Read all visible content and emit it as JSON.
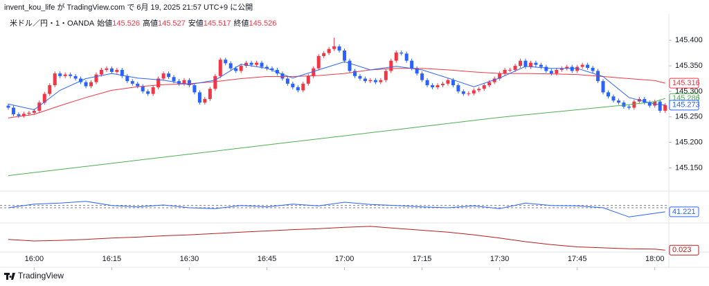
{
  "header": {
    "publisher": "invent_kou_life が TradingView.com で 6月 19, 2025 21:57 UTC+9 に公開"
  },
  "legend": {
    "symbol": "米ドル／円・1・OANDA",
    "open_label": "始値",
    "open": 145.526,
    "high_label": "高値",
    "high": 145.527,
    "low_label": "安値",
    "low": 145.517,
    "close_label": "終値",
    "close": 145.526
  },
  "footer": {
    "brand": "TradingView"
  },
  "chart_data": {
    "type": "candlestick",
    "up_color": "#f23645",
    "down_color": "#2962ff",
    "x": [
      "15:55",
      "15:56",
      "15:57",
      "15:58",
      "15:59",
      "16:00",
      "16:01",
      "16:02",
      "16:03",
      "16:04",
      "16:05",
      "16:06",
      "16:07",
      "16:08",
      "16:09",
      "16:10",
      "16:11",
      "16:12",
      "16:13",
      "16:14",
      "16:15",
      "16:16",
      "16:17",
      "16:18",
      "16:19",
      "16:20",
      "16:21",
      "16:22",
      "16:23",
      "16:24",
      "16:25",
      "16:26",
      "16:27",
      "16:28",
      "16:29",
      "16:30",
      "16:31",
      "16:32",
      "16:33",
      "16:34",
      "16:35",
      "16:36",
      "16:37",
      "16:38",
      "16:39",
      "16:40",
      "16:41",
      "16:42",
      "16:43",
      "16:44",
      "16:45",
      "16:46",
      "16:47",
      "16:48",
      "16:49",
      "16:50",
      "16:51",
      "16:52",
      "16:53",
      "16:54",
      "16:55",
      "16:56",
      "16:57",
      "16:58",
      "16:59",
      "17:00",
      "17:01",
      "17:02",
      "17:03",
      "17:04",
      "17:05",
      "17:06",
      "17:07",
      "17:08",
      "17:09",
      "17:10",
      "17:11",
      "17:12",
      "17:13",
      "17:14",
      "17:15",
      "17:16",
      "17:17",
      "17:18",
      "17:19",
      "17:20",
      "17:21",
      "17:22",
      "17:23",
      "17:24",
      "17:25",
      "17:26",
      "17:27",
      "17:28",
      "17:29",
      "17:30",
      "17:31",
      "17:32",
      "17:33",
      "17:34",
      "17:35",
      "17:36",
      "17:37",
      "17:38",
      "17:39",
      "17:40",
      "17:41",
      "17:42",
      "17:43",
      "17:44",
      "17:45",
      "17:46",
      "17:47",
      "17:48",
      "17:49",
      "17:50",
      "17:51",
      "17:52",
      "17:53",
      "17:54",
      "17:55",
      "17:56",
      "17:57",
      "17:58",
      "17:59",
      "18:00",
      "18:01",
      "18:02"
    ],
    "open": [
      145.272,
      145.268,
      145.255,
      145.252,
      145.256,
      145.258,
      145.262,
      145.278,
      145.295,
      145.312,
      145.335,
      145.33,
      145.333,
      145.33,
      145.325,
      145.318,
      145.31,
      145.318,
      145.333,
      145.342,
      145.345,
      145.338,
      145.342,
      145.33,
      145.32,
      145.315,
      145.31,
      145.3,
      145.295,
      145.308,
      145.325,
      145.335,
      145.328,
      145.32,
      145.315,
      145.322,
      145.312,
      145.298,
      145.278,
      145.285,
      145.305,
      145.33,
      145.362,
      145.355,
      145.345,
      145.34,
      145.35,
      145.356,
      145.352,
      145.356,
      145.348,
      145.345,
      145.342,
      145.335,
      145.325,
      145.315,
      145.308,
      145.302,
      145.315,
      145.33,
      145.345,
      145.369,
      145.375,
      145.383,
      145.388,
      145.38,
      145.36,
      145.34,
      145.33,
      145.325,
      145.32,
      145.322,
      145.318,
      145.322,
      145.34,
      145.36,
      145.376,
      145.374,
      145.36,
      145.345,
      145.335,
      145.322,
      145.312,
      145.308,
      145.312,
      145.315,
      145.322,
      145.312,
      145.3,
      145.295,
      145.296,
      145.302,
      145.305,
      145.312,
      145.318,
      145.325,
      145.335,
      145.342,
      145.342,
      145.35,
      145.36,
      145.348,
      145.356,
      145.352,
      145.348,
      145.34,
      145.335,
      145.342,
      145.345,
      145.348,
      145.34,
      145.348,
      145.352,
      145.346,
      145.34,
      145.32,
      145.298,
      145.29,
      145.282,
      145.278,
      145.27,
      145.268,
      145.28,
      145.285,
      145.278,
      145.272,
      145.28,
      145.262
    ],
    "high": [
      145.276,
      145.272,
      145.259,
      145.26,
      145.262,
      145.266,
      145.282,
      145.299,
      145.316,
      145.339,
      145.339,
      145.337,
      145.337,
      145.334,
      145.329,
      145.322,
      145.322,
      145.337,
      145.346,
      145.349,
      145.349,
      145.346,
      145.346,
      145.334,
      145.324,
      145.319,
      145.314,
      145.304,
      145.312,
      145.329,
      145.339,
      145.339,
      145.332,
      145.324,
      145.326,
      145.326,
      145.316,
      145.302,
      145.289,
      145.309,
      145.334,
      145.366,
      145.366,
      145.359,
      145.349,
      145.354,
      145.36,
      145.36,
      145.36,
      145.36,
      145.352,
      145.349,
      145.346,
      145.339,
      145.329,
      145.319,
      145.312,
      145.319,
      145.334,
      145.349,
      145.373,
      145.379,
      145.387,
      145.405,
      145.392,
      145.384,
      145.364,
      145.344,
      145.334,
      145.329,
      145.326,
      145.326,
      145.326,
      145.344,
      145.364,
      145.38,
      145.38,
      145.378,
      145.364,
      145.349,
      145.339,
      145.326,
      145.316,
      145.316,
      145.319,
      145.326,
      145.326,
      145.316,
      145.304,
      145.3,
      145.306,
      145.309,
      145.316,
      145.322,
      145.329,
      145.339,
      145.346,
      145.346,
      145.354,
      145.364,
      145.364,
      145.36,
      145.36,
      145.356,
      145.352,
      145.344,
      145.346,
      145.349,
      145.352,
      145.352,
      145.352,
      145.356,
      145.356,
      145.35,
      145.344,
      145.324,
      145.302,
      145.294,
      145.286,
      145.282,
      145.274,
      145.284,
      145.289,
      145.289,
      145.282,
      145.284,
      145.284,
      145.277
    ],
    "low": [
      145.264,
      145.251,
      145.248,
      145.248,
      145.252,
      145.254,
      145.258,
      145.274,
      145.291,
      145.308,
      145.326,
      145.326,
      145.326,
      145.321,
      145.314,
      145.306,
      145.306,
      145.314,
      145.329,
      145.338,
      145.334,
      145.334,
      145.326,
      145.316,
      145.311,
      145.306,
      145.296,
      145.291,
      145.291,
      145.304,
      145.321,
      145.324,
      145.316,
      145.311,
      145.311,
      145.308,
      145.294,
      145.274,
      145.274,
      145.281,
      145.301,
      145.326,
      145.351,
      145.341,
      145.336,
      145.336,
      145.346,
      145.348,
      145.348,
      145.344,
      145.341,
      145.338,
      145.331,
      145.321,
      145.311,
      145.304,
      145.298,
      145.298,
      145.311,
      145.326,
      145.341,
      145.365,
      145.371,
      145.379,
      145.376,
      145.356,
      145.336,
      145.326,
      145.321,
      145.316,
      145.316,
      145.314,
      145.314,
      145.318,
      145.336,
      145.356,
      145.37,
      145.356,
      145.341,
      145.331,
      145.318,
      145.308,
      145.304,
      145.304,
      145.308,
      145.311,
      145.308,
      145.296,
      145.291,
      145.291,
      145.292,
      145.298,
      145.301,
      145.308,
      145.314,
      145.321,
      145.331,
      145.338,
      145.338,
      145.346,
      145.344,
      145.344,
      145.348,
      145.344,
      145.336,
      145.331,
      145.331,
      145.338,
      145.341,
      145.336,
      145.336,
      145.344,
      145.342,
      145.336,
      145.316,
      145.294,
      145.286,
      145.278,
      145.274,
      145.266,
      145.264,
      145.264,
      145.276,
      145.274,
      145.268,
      145.268,
      145.258,
      145.258
    ],
    "close": [
      145.268,
      145.255,
      145.252,
      145.256,
      145.258,
      145.262,
      145.278,
      145.295,
      145.312,
      145.335,
      145.33,
      145.333,
      145.33,
      145.325,
      145.318,
      145.31,
      145.318,
      145.333,
      145.342,
      145.345,
      145.338,
      145.342,
      145.33,
      145.32,
      145.315,
      145.31,
      145.3,
      145.295,
      145.308,
      145.325,
      145.335,
      145.328,
      145.32,
      145.315,
      145.322,
      145.312,
      145.298,
      145.278,
      145.285,
      145.305,
      145.33,
      145.362,
      145.355,
      145.345,
      145.34,
      145.35,
      145.356,
      145.352,
      145.356,
      145.348,
      145.345,
      145.342,
      145.335,
      145.325,
      145.315,
      145.308,
      145.302,
      145.315,
      145.33,
      145.345,
      145.369,
      145.375,
      145.383,
      145.388,
      145.38,
      145.36,
      145.34,
      145.33,
      145.325,
      145.32,
      145.322,
      145.318,
      145.322,
      145.34,
      145.36,
      145.376,
      145.374,
      145.36,
      145.345,
      145.335,
      145.322,
      145.312,
      145.308,
      145.312,
      145.315,
      145.322,
      145.312,
      145.3,
      145.295,
      145.296,
      145.302,
      145.305,
      145.312,
      145.318,
      145.325,
      145.335,
      145.342,
      145.342,
      145.35,
      145.36,
      145.348,
      145.356,
      145.352,
      145.348,
      145.34,
      145.335,
      145.342,
      145.345,
      145.348,
      145.34,
      145.348,
      145.352,
      145.346,
      145.34,
      145.32,
      145.298,
      145.29,
      145.282,
      145.278,
      145.27,
      145.268,
      145.28,
      145.285,
      145.278,
      145.272,
      145.28,
      145.262,
      145.273
    ],
    "ylim": [
      145.11,
      145.445
    ],
    "yticks": [
      {
        "value": 145.15,
        "label": "145.150"
      },
      {
        "value": 145.2,
        "label": "145.200"
      },
      {
        "value": 145.25,
        "label": "145.250"
      },
      {
        "value": 145.3,
        "label": "145.300"
      },
      {
        "value": 145.35,
        "label": "145.350"
      },
      {
        "value": 145.4,
        "label": "145.400"
      }
    ],
    "xticks": [
      "16:00",
      "16:15",
      "16:30",
      "16:45",
      "17:00",
      "17:15",
      "17:30",
      "17:45",
      "18:00"
    ],
    "overlay_x": [
      "15:55",
      "16:00",
      "16:05",
      "16:10",
      "16:15",
      "16:20",
      "16:25",
      "16:30",
      "16:35",
      "16:40",
      "16:45",
      "16:50",
      "16:55",
      "17:00",
      "17:05",
      "17:10",
      "17:15",
      "17:20",
      "17:25",
      "17:30",
      "17:35",
      "17:40",
      "17:45",
      "17:50",
      "17:55",
      "18:00",
      "18:02"
    ],
    "overlays": [
      {
        "color": "#f23645",
        "values": [
          145.248,
          145.255,
          145.272,
          145.288,
          145.302,
          145.309,
          145.313,
          145.315,
          145.319,
          145.325,
          145.329,
          145.329,
          145.331,
          145.335,
          145.342,
          145.345,
          145.345,
          145.342,
          145.338,
          145.335,
          145.335,
          145.334,
          145.333,
          145.329,
          145.325,
          145.321,
          145.316
        ]
      },
      {
        "color": "#4caf50",
        "values": [
          145.135,
          145.141,
          145.147,
          145.153,
          145.159,
          145.165,
          145.171,
          145.177,
          145.183,
          145.189,
          145.195,
          145.201,
          145.207,
          145.213,
          145.219,
          145.225,
          145.231,
          145.237,
          145.243,
          145.249,
          145.254,
          145.259,
          145.264,
          145.269,
          145.274,
          145.28,
          145.286
        ]
      },
      {
        "color": "#2962ff",
        "values": [
          145.275,
          145.264,
          145.302,
          145.325,
          145.335,
          145.326,
          145.322,
          145.313,
          145.322,
          145.353,
          145.345,
          145.326,
          145.342,
          145.358,
          145.342,
          145.349,
          145.342,
          145.326,
          145.309,
          145.326,
          145.349,
          145.345,
          145.345,
          145.329,
          145.288,
          145.275,
          145.273
        ]
      }
    ],
    "panels": [
      {
        "type": "line",
        "color": "#2962ff",
        "ylim": [
          20,
          80
        ],
        "levels": [
          50,
          55
        ],
        "level_color": "#787b86",
        "values": [
          50,
          58,
          60,
          64,
          55,
          52,
          56,
          50,
          48,
          55,
          52,
          58,
          54,
          62,
          57,
          55,
          52,
          50,
          54,
          48,
          60,
          55,
          54,
          50,
          30,
          38,
          41.221
        ]
      },
      {
        "type": "line",
        "color": "#b71c1c",
        "ylim": [
          0,
          0.1
        ],
        "values": [
          0.056,
          0.051,
          0.053,
          0.056,
          0.06,
          0.063,
          0.067,
          0.07,
          0.074,
          0.078,
          0.082,
          0.086,
          0.089,
          0.093,
          0.096,
          0.09,
          0.084,
          0.078,
          0.07,
          0.06,
          0.049,
          0.04,
          0.033,
          0.03,
          0.027,
          0.026,
          0.023
        ]
      }
    ]
  }
}
